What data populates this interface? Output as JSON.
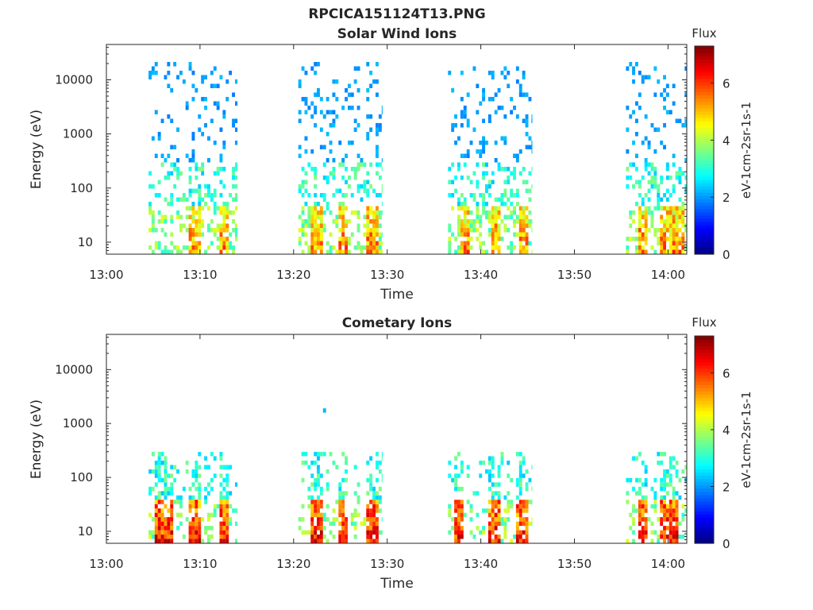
{
  "figure_title": "RPCICA151124T13.PNG",
  "colormap": [
    "#00007f",
    "#0000ff",
    "#007fff",
    "#00ffff",
    "#7fff7f",
    "#ffff00",
    "#ff7f00",
    "#ff0000",
    "#7f0000"
  ],
  "chart_data": [
    {
      "type": "heatmap",
      "title": "Solar Wind Ions",
      "xlabel": "Time",
      "ylabel": "Energy (eV)",
      "yscale": "log",
      "xlim": [
        "13:00",
        "14:02"
      ],
      "ylim": [
        6,
        45000
      ],
      "x_ticks": [
        "13:00",
        "13:10",
        "13:20",
        "13:30",
        "13:40",
        "13:50",
        "14:00"
      ],
      "y_ticks": [
        "10",
        "100",
        "1000",
        "10000"
      ],
      "colorbar": {
        "title": "Flux",
        "label": "eV-1cm-2sr-1s-1",
        "range": [
          0,
          7.3
        ],
        "ticks": [
          "0",
          "2",
          "4",
          "6"
        ]
      },
      "bursts": [
        {
          "start": "13:04.5",
          "end": "13:14.0",
          "low_energy_cores": [
            [
              "13:08.5",
              "13:10.0"
            ],
            [
              "13:12.0",
              "13:13.0"
            ]
          ]
        },
        {
          "start": "13:20.5",
          "end": "13:29.5",
          "low_energy_cores": [
            [
              "13:21.5",
              "13:23.0"
            ],
            [
              "13:24.5",
              "13:25.5"
            ],
            [
              "13:27.5",
              "13:29.0"
            ]
          ]
        },
        {
          "start": "13:36.5",
          "end": "13:45.5",
          "low_energy_cores": [
            [
              "13:37.5",
              "13:38.5"
            ],
            [
              "13:41.0",
              "13:42.0"
            ],
            [
              "13:44.0",
              "13:45.0"
            ]
          ]
        },
        {
          "start": "13:55.5",
          "end": "14:02.0",
          "low_energy_cores": [
            [
              "13:56.5",
              "13:57.5"
            ],
            [
              "13:59.0",
              "14:01.5"
            ]
          ]
        }
      ],
      "flux_profile": {
        "core_flux": 5.2,
        "core_energy_max": 40,
        "scatter_flux": 2.0,
        "scatter_energy": [
          150,
          20000
        ]
      }
    },
    {
      "type": "heatmap",
      "title": "Cometary Ions",
      "xlabel": "Time",
      "ylabel": "Energy (eV)",
      "yscale": "log",
      "xlim": [
        "13:00",
        "14:02"
      ],
      "ylim": [
        6,
        45000
      ],
      "x_ticks": [
        "13:00",
        "13:10",
        "13:20",
        "13:30",
        "13:40",
        "13:50",
        "14:00"
      ],
      "y_ticks": [
        "10",
        "100",
        "1000",
        "10000"
      ],
      "colorbar": {
        "title": "Flux",
        "label": "eV-1cm-2sr-1s-1",
        "range": [
          0,
          7.3
        ],
        "ticks": [
          "0",
          "2",
          "4",
          "6"
        ]
      },
      "bursts": [
        {
          "start": "13:04.5",
          "end": "13:14.0",
          "low_energy_cores": [
            [
              "13:05.0",
              "13:07.0"
            ],
            [
              "13:08.5",
              "13:10.0"
            ],
            [
              "13:12.0",
              "13:13.0"
            ]
          ]
        },
        {
          "start": "13:20.5",
          "end": "13:29.5",
          "low_energy_cores": [
            [
              "13:21.5",
              "13:23.0"
            ],
            [
              "13:24.5",
              "13:25.5"
            ],
            [
              "13:27.5",
              "13:29.0"
            ]
          ]
        },
        {
          "start": "13:36.5",
          "end": "13:45.5",
          "low_energy_cores": [
            [
              "13:37.0",
              "13:38.0"
            ],
            [
              "13:40.5",
              "13:42.0"
            ],
            [
              "13:43.5",
              "13:45.0"
            ]
          ]
        },
        {
          "start": "13:55.5",
          "end": "14:02.0",
          "low_energy_cores": [
            [
              "13:56.5",
              "13:57.5"
            ],
            [
              "13:59.0",
              "14:01.0"
            ]
          ]
        }
      ],
      "flux_profile": {
        "core_flux": 6.0,
        "core_energy_max": 30,
        "scatter_flux": 2.0,
        "scatter_energy": [
          1500,
          4000
        ]
      }
    }
  ]
}
